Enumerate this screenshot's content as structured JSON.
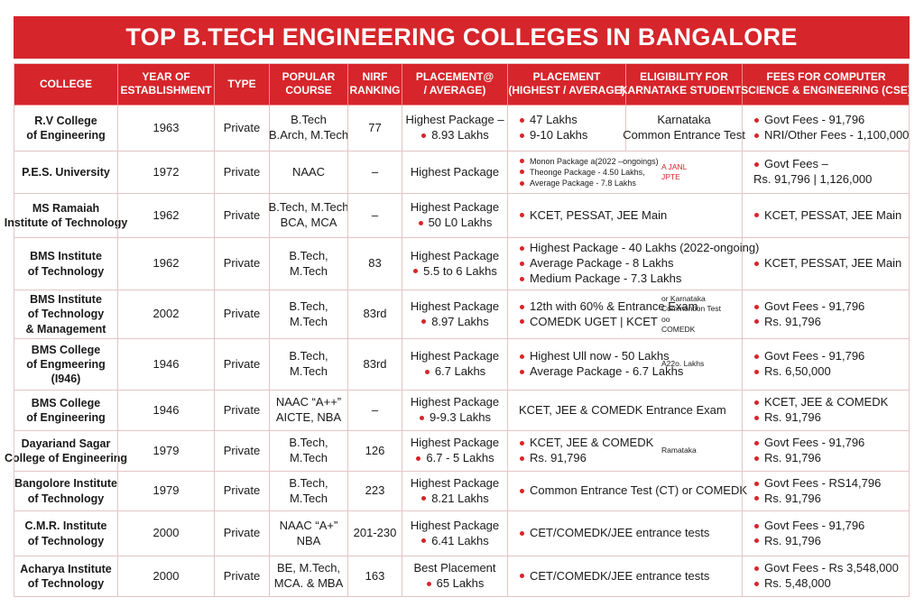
{
  "title": "TOP B.TECH ENGINEERING COLLEGES IN BANGALORE",
  "table": {
    "header": [
      [
        "COLLEGE"
      ],
      [
        "YEAR OF",
        "ESTABLISHMENT"
      ],
      [
        "TYPE"
      ],
      [
        "POPULAR",
        "COURSE"
      ],
      [
        "NIRF",
        "RANKING"
      ],
      [
        "PLACEMENT@",
        "/ AVERAGE)"
      ],
      [
        "PLACEMENT",
        "(HIGHEST / AVERAGE)"
      ],
      [
        "ELIGIBILITY FOR",
        "KARNATAKE STUDENTS"
      ],
      [
        "FEES FOR COMPUTER",
        "SCIENCE & ENGINEERING (CSE)"
      ]
    ],
    "rows": [
      [
        [
          "R.V College",
          "of Engineering"
        ],
        [
          "1963"
        ],
        [
          "Private"
        ],
        [
          "B.Tech",
          "B.Arch, M.Tech"
        ],
        [
          "77"
        ],
        [
          "Highest Package –",
          "8.93 Lakhs"
        ],
        [
          "47 Lakhs",
          "9-10 Lakhs"
        ],
        [
          "Karnataka",
          "Common Entrance Test"
        ],
        [
          "Govt Fees - 91,796",
          "NRI/Other Fees - 1,100,000"
        ]
      ],
      [
        [
          "P.E.S. University"
        ],
        [
          "1972"
        ],
        [
          "Private"
        ],
        [
          "NAAC"
        ],
        [
          "–"
        ],
        [
          "Highest Package"
        ],
        [
          "Monon Package a(2022 –ongoings)",
          "Theonge Package - 4.50 Lakhs,",
          "Average Package - 7.8 Lakhs"
        ],
        [
          "A JANL",
          "JPTE"
        ],
        [
          "Govt Fees –",
          "Rs. 91,796  |  1,126,000"
        ]
      ],
      [
        [
          "MS Ramaiah",
          "Institute of Technology"
        ],
        [
          "1962"
        ],
        [
          "Private"
        ],
        [
          "B.Tech, M.Tech",
          "BCA, MCA"
        ],
        [
          "–"
        ],
        [
          "Highest Package",
          "50 L0 Lakhs"
        ],
        [
          "KCET, PESSAT, JEE Main"
        ],
        [
          "KCET, PESSAT, JEE Main"
        ]
      ],
      [
        [
          "BMS Institute",
          "of Technology"
        ],
        [
          "1962"
        ],
        [
          "Private"
        ],
        [
          "B.Tech,",
          "M.Tech"
        ],
        [
          "83"
        ],
        [
          "Highest Package",
          "5.5 to 6 Lakhs"
        ],
        [
          "Highest Package - 40 Lakhs (2022-ongoing)",
          "Average Package - 8 Lakhs",
          "Medium Package - 7.3 Lakhs"
        ],
        [
          "KCET, PESSAT, JEE Main"
        ]
      ],
      [
        [
          "BMS Institute",
          "of Technology",
          "& Management"
        ],
        [
          "2002"
        ],
        [
          "Private"
        ],
        [
          "B.Tech,",
          "M.Tech"
        ],
        [
          "83rd"
        ],
        [
          "Highest Package",
          "8.97 Lakhs"
        ],
        [
          "12th with 60% & Entrance Exam",
          "COMEDK UGET | KCET"
        ],
        [
          "or Karnataka",
          "Commontion Test",
          "oo",
          "COMEDK"
        ],
        [
          "Govt Fees - 91,796",
          "Rs. 91,796"
        ]
      ],
      [
        [
          "BMS College",
          "of Engmeering",
          "(I946)"
        ],
        [
          "1946"
        ],
        [
          "Private"
        ],
        [
          "B.Tech,",
          "M.Tech"
        ],
        [
          "83rd"
        ],
        [
          "Highest Package",
          "6.7 Lakhs"
        ],
        [
          "Highest Ull now - 50 Lakhs",
          "Average Package - 6.7 Lakhs"
        ],
        [
          "A22o. Lakhs"
        ],
        [
          "Govt Fees - 91,796",
          "Rs. 6,50,000"
        ]
      ],
      [
        [
          "BMS College",
          "of Engineering"
        ],
        [
          "1946"
        ],
        [
          "Private"
        ],
        [
          "NAAC “A++”",
          "AICTE, NBA"
        ],
        [
          "–"
        ],
        [
          "Highest Package",
          "9-9.3 Lakhs"
        ],
        [
          "KCET, JEE & COMEDK Entrance  Exam"
        ],
        [
          "KCET, JEE & COMEDK",
          "Rs. 91,796"
        ]
      ],
      [
        [
          "Dayariand Sagar",
          "College of Engineering"
        ],
        [
          "1979"
        ],
        [
          "Private"
        ],
        [
          "B.Tech,",
          "M.Tech"
        ],
        [
          "126"
        ],
        [
          "Highest Package",
          "6.7 - 5 Lakhs"
        ],
        [
          "KCET, JEE & COMEDK",
          "Rs. 91,796"
        ],
        [
          "Ramataka"
        ],
        [
          "Govt Fees - 91,796",
          "Rs. 91,796"
        ]
      ],
      [
        [
          "Bangolore Institute",
          "of  Technology"
        ],
        [
          "1979"
        ],
        [
          "Private"
        ],
        [
          "B.Tech,",
          "M.Tech"
        ],
        [
          "223"
        ],
        [
          "Highest Package",
          "8.21 Lakhs"
        ],
        [
          "Common Entrance Test (CT) or COMEDK"
        ],
        [
          "Govt Fees - RS14,796",
          "Rs. 91,796"
        ]
      ],
      [
        [
          "C.M.R. Institute",
          "of Technology"
        ],
        [
          "2000"
        ],
        [
          "Private"
        ],
        [
          "NAAC “A+”",
          "NBA"
        ],
        [
          "201-230"
        ],
        [
          "Highest Package",
          "6.41 Lakhs"
        ],
        [
          "CET/COMEDK/JEE entrance tests"
        ],
        [
          "Govt Fees - 91,796",
          "Rs. 91,796"
        ]
      ],
      [
        [
          "Acharya Institute",
          "of Technology"
        ],
        [
          "2000"
        ],
        [
          "Private"
        ],
        [
          "BE, M.Tech,",
          "MCA. & MBA"
        ],
        [
          "163"
        ],
        [
          "Best Placement",
          "65 Lakhs"
        ],
        [
          "CET/COMEDK/JEE entrance tests"
        ],
        [
          "Govt Fees - Rs 3,548,000",
          "Rs. 5,48,000"
        ]
      ]
    ]
  }
}
